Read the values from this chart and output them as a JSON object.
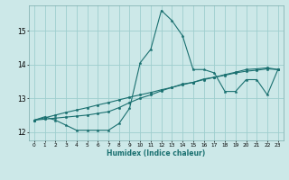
{
  "xlabel": "Humidex (Indice chaleur)",
  "background_color": "#cce8e8",
  "grid_color": "#9ecece",
  "line_color": "#1a7070",
  "x_ticks": [
    0,
    1,
    2,
    3,
    4,
    5,
    6,
    7,
    8,
    9,
    10,
    11,
    12,
    13,
    14,
    15,
    16,
    17,
    18,
    19,
    20,
    21,
    22,
    23
  ],
  "ylim": [
    11.75,
    15.75
  ],
  "xlim": [
    -0.5,
    23.5
  ],
  "yticks": [
    12,
    13,
    14,
    15
  ],
  "series1_x": [
    0,
    1,
    2,
    3,
    4,
    5,
    6,
    7,
    8,
    9,
    10,
    11,
    12,
    13,
    14,
    15,
    16,
    17,
    18,
    19,
    20,
    21,
    22,
    23
  ],
  "series1_y": [
    12.35,
    12.45,
    12.35,
    12.2,
    12.05,
    12.05,
    12.05,
    12.05,
    12.25,
    12.7,
    14.05,
    14.45,
    15.6,
    15.3,
    14.85,
    13.85,
    13.85,
    13.75,
    13.2,
    13.2,
    13.55,
    13.55,
    13.1,
    13.85
  ],
  "series2_x": [
    0,
    1,
    2,
    3,
    4,
    5,
    6,
    7,
    8,
    9,
    10,
    11,
    12,
    13,
    14,
    15,
    16,
    17,
    18,
    19,
    20,
    21,
    22,
    23
  ],
  "series2_y": [
    12.35,
    12.42,
    12.5,
    12.58,
    12.65,
    12.72,
    12.8,
    12.87,
    12.95,
    13.03,
    13.1,
    13.17,
    13.25,
    13.32,
    13.4,
    13.47,
    13.55,
    13.62,
    13.7,
    13.77,
    13.85,
    13.87,
    13.9,
    13.85
  ],
  "series3_x": [
    0,
    1,
    2,
    3,
    4,
    5,
    6,
    7,
    8,
    9,
    10,
    11,
    12,
    13,
    14,
    15,
    16,
    17,
    18,
    19,
    20,
    21,
    22,
    23
  ],
  "series3_y": [
    12.35,
    12.38,
    12.41,
    12.44,
    12.47,
    12.5,
    12.55,
    12.6,
    12.72,
    12.87,
    13.0,
    13.1,
    13.22,
    13.32,
    13.42,
    13.47,
    13.57,
    13.62,
    13.68,
    13.75,
    13.8,
    13.83,
    13.87,
    13.85
  ]
}
